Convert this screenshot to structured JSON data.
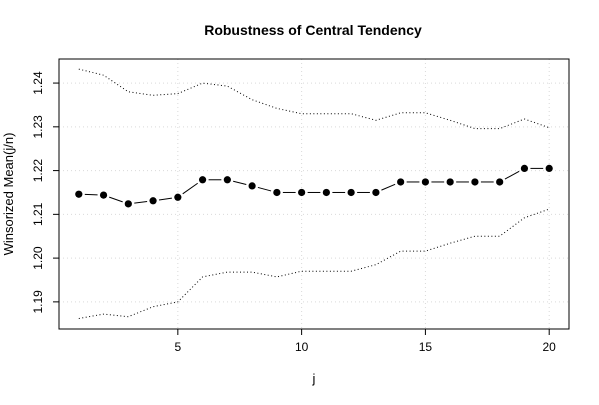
{
  "chart_data": {
    "type": "line",
    "title": "Robustness of Central Tendency",
    "xlabel": "j",
    "ylabel": "Winsorized Mean(j/n)",
    "x": [
      1,
      2,
      3,
      4,
      5,
      6,
      7,
      8,
      9,
      10,
      11,
      12,
      13,
      14,
      15,
      16,
      17,
      18,
      19,
      20
    ],
    "xlim": [
      0.2,
      20.8
    ],
    "ylim": [
      1.1838,
      1.2455
    ],
    "xticks": [
      5,
      10,
      15,
      20
    ],
    "yticks": [
      1.19,
      1.2,
      1.21,
      1.22,
      1.23,
      1.24
    ],
    "xtick_labels": [
      "5",
      "10",
      "15",
      "20"
    ],
    "ytick_labels": [
      "1.19",
      "1.20",
      "1.21",
      "1.22",
      "1.23",
      "1.24"
    ],
    "grid": true,
    "series": [
      {
        "role": "estimate",
        "style": "line-with-points",
        "color": "#000000",
        "values": [
          1.2146,
          1.2144,
          1.2124,
          1.2131,
          1.2139,
          1.2179,
          1.2179,
          1.2165,
          1.215,
          1.215,
          1.215,
          1.215,
          1.215,
          1.2174,
          1.2174,
          1.2174,
          1.2174,
          1.2174,
          1.2205,
          1.2205
        ]
      },
      {
        "role": "upper-bound",
        "style": "dotted",
        "color": "#000000",
        "values": [
          1.2432,
          1.2418,
          1.238,
          1.2372,
          1.2376,
          1.24,
          1.2393,
          1.2362,
          1.2342,
          1.233,
          1.233,
          1.233,
          1.2315,
          1.2332,
          1.2332,
          1.2315,
          1.2296,
          1.2296,
          1.2318,
          1.2298
        ]
      },
      {
        "role": "lower-bound",
        "style": "dotted",
        "color": "#000000",
        "values": [
          1.1862,
          1.1872,
          1.1866,
          1.1889,
          1.19,
          1.1957,
          1.1968,
          1.1968,
          1.1957,
          1.197,
          1.197,
          1.197,
          1.1985,
          1.2016,
          1.2016,
          1.2034,
          1.205,
          1.205,
          1.2092,
          1.2112
        ]
      }
    ]
  }
}
